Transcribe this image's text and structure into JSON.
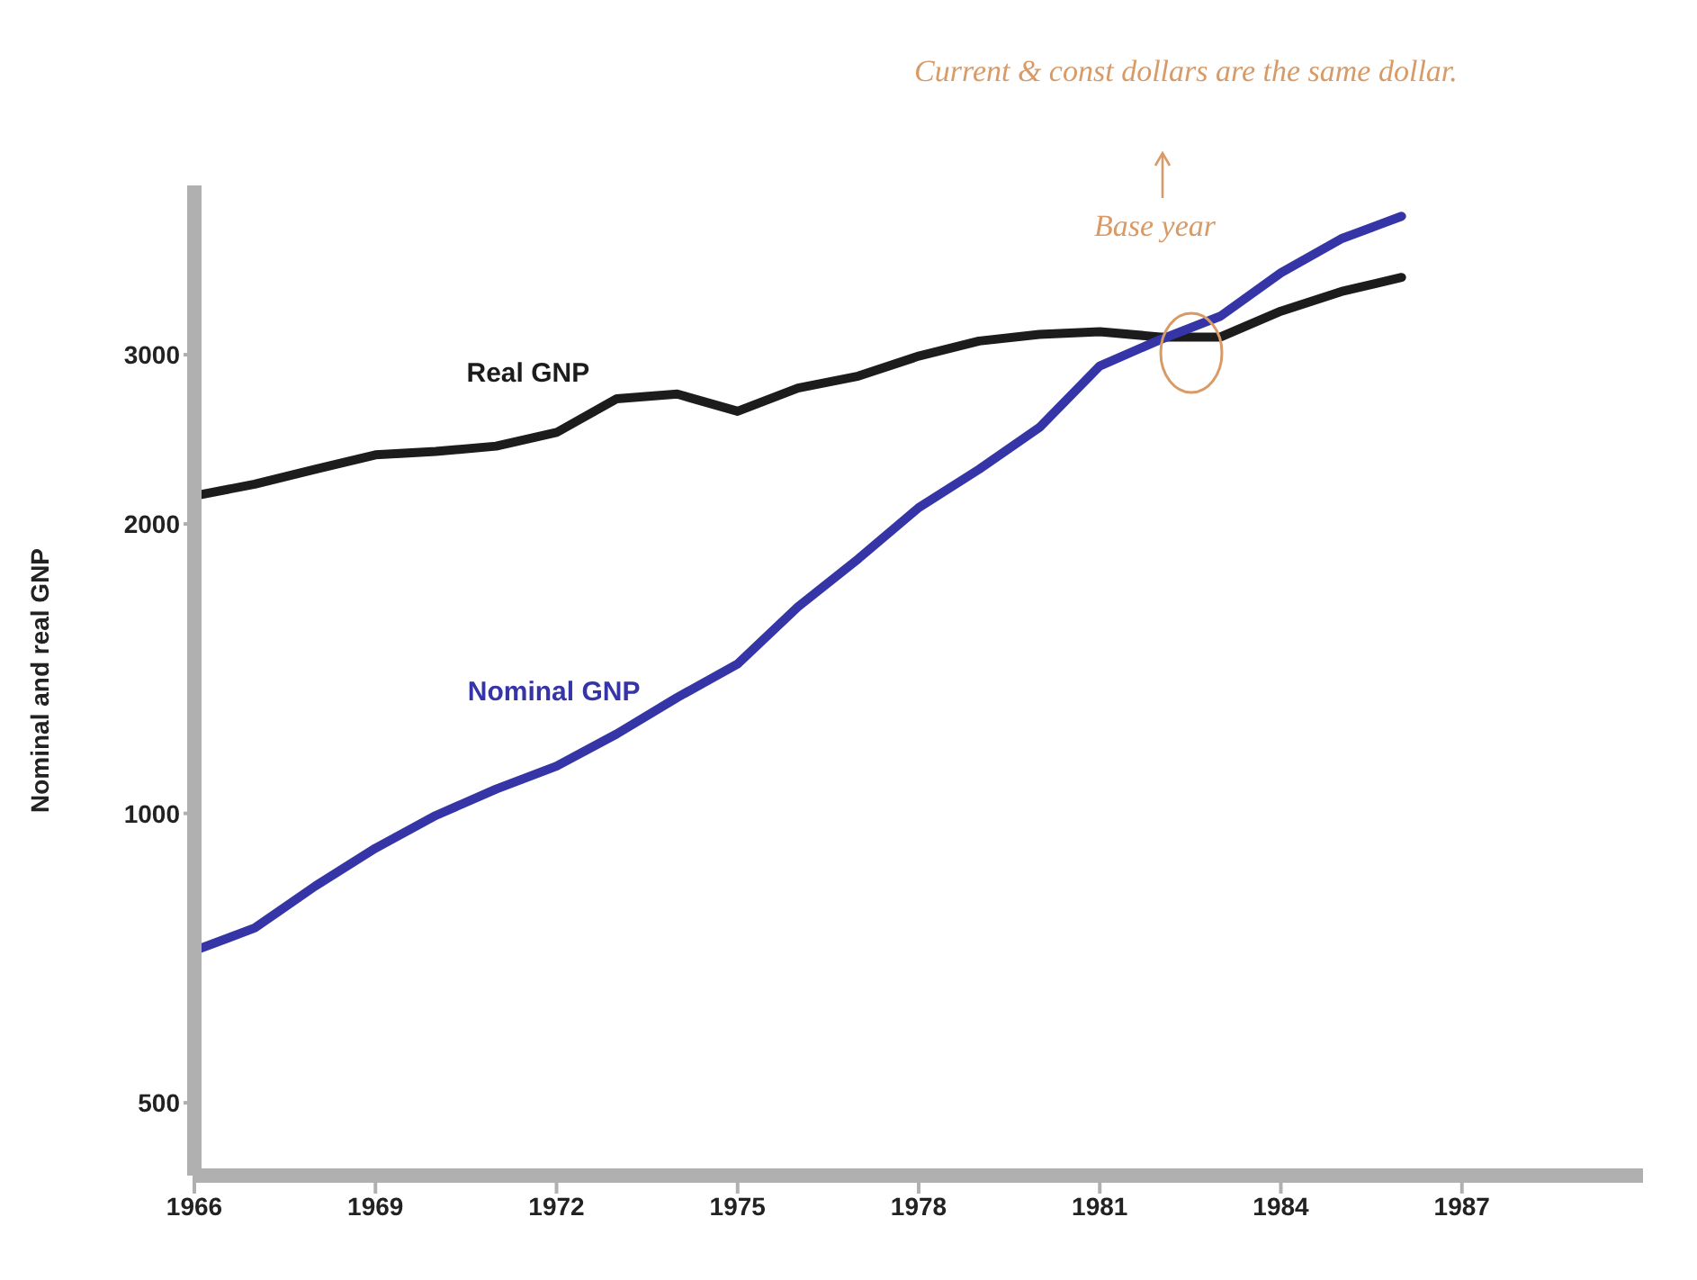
{
  "chart_data": {
    "type": "line",
    "ylabel": "Nominal and real GNP",
    "x": [
      1966,
      1967,
      1968,
      1969,
      1970,
      1971,
      1972,
      1973,
      1974,
      1975,
      1976,
      1977,
      1978,
      1979,
      1980,
      1981,
      1982,
      1983,
      1984,
      1985,
      1986
    ],
    "series": [
      {
        "name": "Real GNP",
        "color": "#1c1c1c",
        "values": [
          2140,
          2200,
          2280,
          2360,
          2380,
          2410,
          2490,
          2700,
          2730,
          2620,
          2770,
          2850,
          2990,
          3100,
          3150,
          3170,
          3130,
          3130,
          3330,
          3490,
          3610
        ]
      },
      {
        "name": "Nominal GNP",
        "color": "#3535a8",
        "values": [
          720,
          760,
          840,
          920,
          995,
          1060,
          1120,
          1210,
          1320,
          1430,
          1640,
          1840,
          2080,
          2280,
          2520,
          2920,
          3110,
          3290,
          3650,
          3960,
          4180
        ]
      }
    ],
    "xlim": [
      1966,
      1990
    ],
    "xticks": [
      1966,
      1969,
      1972,
      1975,
      1978,
      1981,
      1984,
      1987
    ],
    "ylim": [
      420,
      4500
    ],
    "yticks": [
      500,
      1000,
      2000,
      3000
    ],
    "log": "y",
    "marker": "none",
    "line_style": "solid",
    "annotations": [
      "Current & const dollars are the same dollar.",
      "Base year"
    ]
  }
}
